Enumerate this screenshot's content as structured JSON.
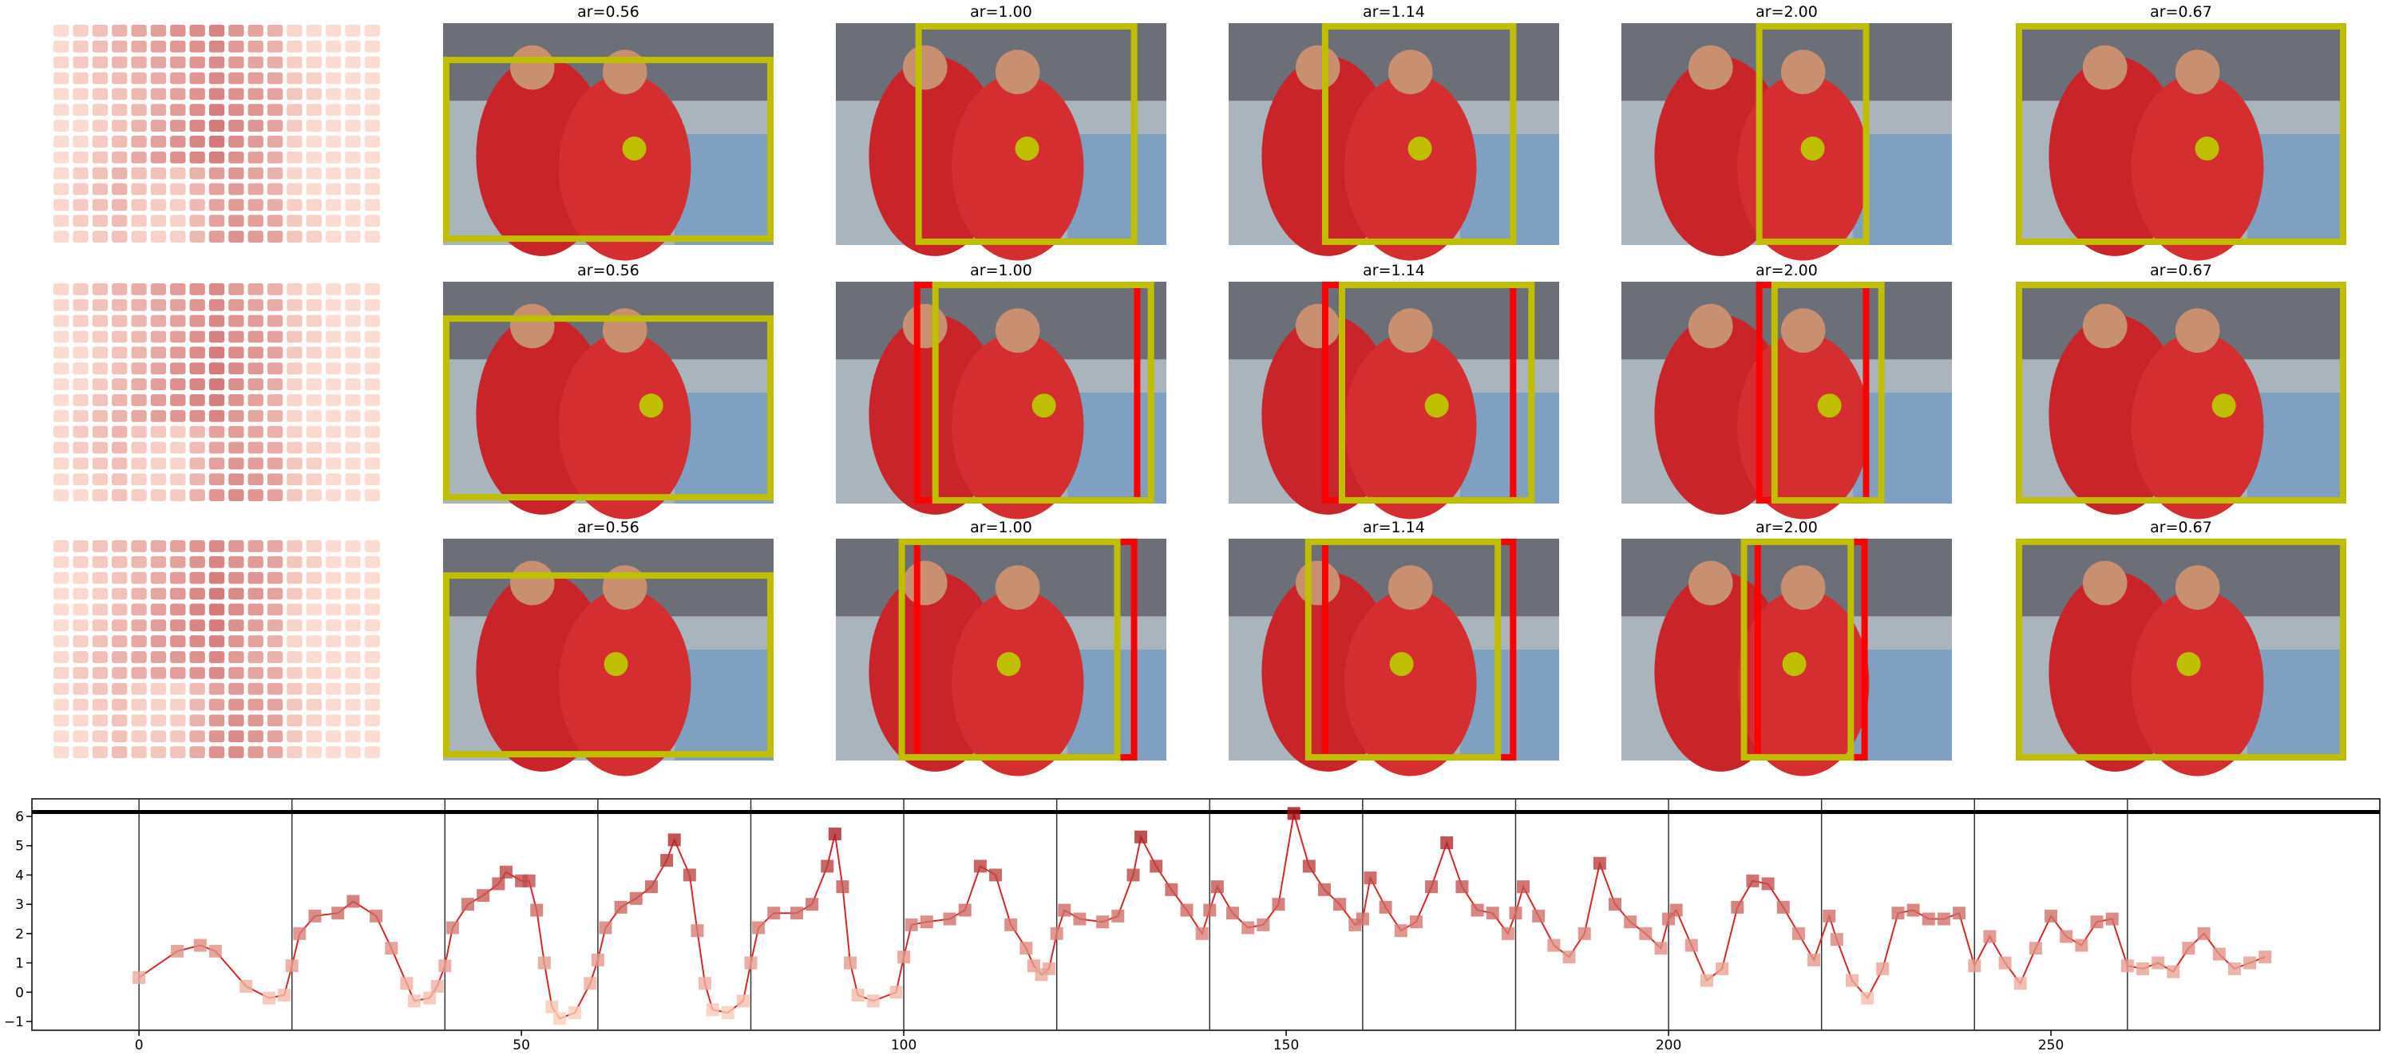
{
  "panels": {
    "rows": [
      {
        "titles": [
          "ar=0.56",
          "ar=1.00",
          "ar=1.14",
          "ar=2.00",
          "ar=0.67"
        ]
      },
      {
        "titles": [
          "ar=0.56",
          "ar=1.00",
          "ar=1.14",
          "ar=2.00",
          "ar=0.67"
        ]
      },
      {
        "titles": [
          "ar=0.56",
          "ar=1.00",
          "ar=1.14",
          "ar=2.00",
          "ar=0.67"
        ]
      }
    ]
  },
  "chart_data": {
    "type": "line",
    "x": [
      0,
      5,
      8,
      10,
      14,
      17,
      19,
      20,
      21,
      23,
      26,
      28,
      31,
      33,
      35,
      36,
      38,
      39,
      40,
      41,
      43,
      45,
      47,
      48,
      50,
      51,
      52,
      53,
      54,
      55,
      57,
      59,
      60,
      61,
      63,
      65,
      67,
      69,
      70,
      72,
      73,
      74,
      75,
      77,
      79,
      80,
      81,
      83,
      86,
      88,
      90,
      91,
      92,
      93,
      94,
      96,
      99,
      100,
      101,
      103,
      106,
      108,
      110,
      112,
      114,
      116,
      117,
      118,
      119,
      120,
      121,
      123,
      126,
      128,
      130,
      131,
      133,
      135,
      137,
      139,
      140,
      141,
      143,
      145,
      147,
      149,
      151,
      153,
      155,
      157,
      159,
      160,
      161,
      163,
      165,
      167,
      169,
      171,
      173,
      175,
      177,
      179,
      180,
      181,
      183,
      185,
      187,
      189,
      191,
      193,
      195,
      197,
      199,
      200,
      201,
      203,
      205,
      207,
      209,
      211,
      213,
      215,
      217,
      219,
      221,
      222,
      224,
      226,
      228,
      230,
      232,
      234,
      236,
      238,
      240,
      242,
      244,
      246,
      248,
      250,
      252,
      254,
      256,
      258,
      260,
      262,
      264,
      266,
      268,
      270,
      272,
      274,
      276,
      278
    ],
    "values": [
      0.5,
      1.4,
      1.6,
      1.4,
      0.2,
      -0.2,
      -0.1,
      0.9,
      2.0,
      2.6,
      2.7,
      3.1,
      2.6,
      1.5,
      0.3,
      -0.3,
      -0.2,
      0.2,
      0.9,
      2.2,
      3.0,
      3.3,
      3.7,
      4.1,
      3.8,
      3.8,
      2.8,
      1.0,
      -0.5,
      -0.9,
      -0.7,
      0.3,
      1.1,
      2.2,
      2.9,
      3.2,
      3.6,
      4.5,
      5.2,
      4.0,
      2.1,
      0.3,
      -0.6,
      -0.7,
      -0.3,
      1.0,
      2.2,
      2.7,
      2.7,
      3.0,
      4.3,
      5.4,
      3.6,
      1.0,
      -0.1,
      -0.3,
      0.0,
      1.2,
      2.3,
      2.4,
      2.5,
      2.8,
      4.3,
      4.0,
      2.3,
      1.5,
      0.9,
      0.6,
      0.8,
      2.0,
      2.8,
      2.5,
      2.4,
      2.6,
      4.0,
      5.3,
      4.3,
      3.5,
      2.8,
      2.0,
      2.8,
      3.6,
      2.7,
      2.2,
      2.3,
      3.0,
      6.1,
      4.3,
      3.5,
      3.0,
      2.3,
      2.5,
      3.9,
      2.9,
      2.1,
      2.4,
      3.6,
      5.1,
      3.6,
      2.8,
      2.7,
      2.0,
      2.7,
      3.6,
      2.6,
      1.6,
      1.2,
      2.0,
      4.4,
      3.0,
      2.4,
      2.0,
      1.5,
      2.5,
      2.8,
      1.6,
      0.4,
      0.8,
      2.9,
      3.8,
      3.7,
      2.9,
      2.0,
      1.1,
      2.6,
      1.8,
      0.4,
      -0.2,
      0.8,
      2.7,
      2.8,
      2.5,
      2.5,
      2.7,
      0.9,
      1.9,
      1.0,
      0.3,
      1.5,
      2.6,
      1.9,
      1.6,
      2.4,
      2.5,
      0.9,
      0.8,
      1.0,
      0.7,
      1.5,
      2.0,
      1.3,
      0.8,
      1.0,
      1.2
    ],
    "color": "#d62728",
    "marker_colors": [
      "#fdd0bc",
      "#a50f15"
    ],
    "xlim": [
      -14,
      293
    ],
    "ylim": [
      -1.3,
      6.6
    ],
    "xticks": [
      0,
      50,
      100,
      150,
      200,
      250
    ],
    "yticks": [
      {
        "value": -1,
        "label": "−1"
      },
      0,
      1,
      2,
      3,
      4,
      5,
      6
    ],
    "vlines": [
      0,
      20,
      40,
      60,
      80,
      100,
      120,
      140,
      160,
      180,
      200,
      220,
      240,
      260
    ],
    "hline": 6.15
  }
}
